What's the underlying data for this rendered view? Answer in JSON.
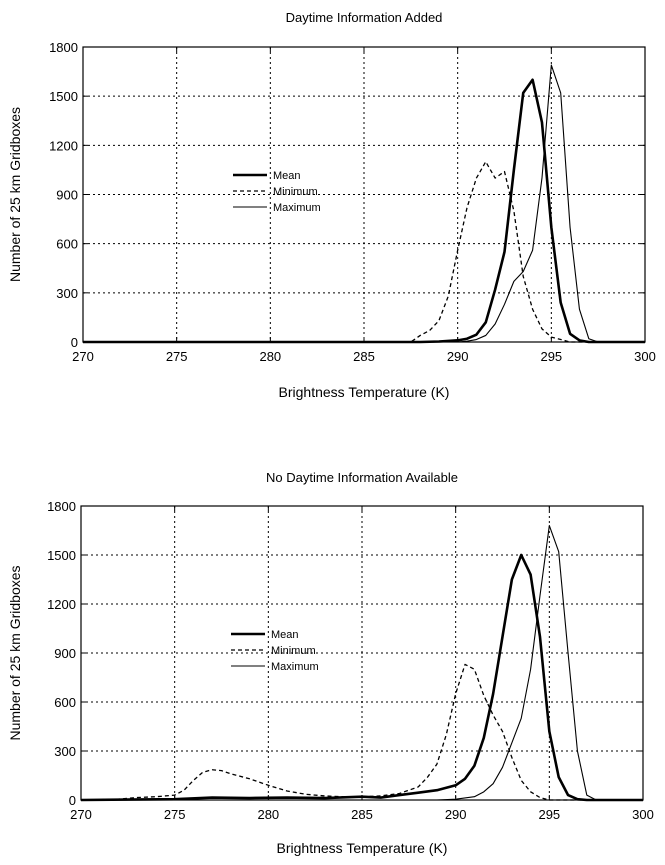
{
  "chart_data": [
    {
      "type": "line",
      "title": "Daytime Information Added",
      "xlabel": "Brightness Temperature (K)",
      "ylabel": "Number of 25 km Gridboxes",
      "xlim": [
        270,
        300
      ],
      "ylim": [
        0,
        1800
      ],
      "xticks": [
        270,
        275,
        280,
        285,
        290,
        295,
        300
      ],
      "yticks": [
        0,
        300,
        600,
        900,
        1200,
        1500,
        1800
      ],
      "grid": true,
      "legend_position": "center-left",
      "series": [
        {
          "name": "Mean",
          "style": "solid-thick",
          "points": [
            [
              270,
              0
            ],
            [
              288,
              0
            ],
            [
              289,
              3
            ],
            [
              290,
              10
            ],
            [
              290.5,
              20
            ],
            [
              291,
              45
            ],
            [
              291.5,
              120
            ],
            [
              292,
              320
            ],
            [
              292.5,
              550
            ],
            [
              293,
              1050
            ],
            [
              293.5,
              1520
            ],
            [
              294,
              1600
            ],
            [
              294.5,
              1340
            ],
            [
              295,
              700
            ],
            [
              295.5,
              240
            ],
            [
              296,
              50
            ],
            [
              296.5,
              10
            ],
            [
              297,
              0
            ],
            [
              300,
              0
            ]
          ]
        },
        {
          "name": "Minimum",
          "style": "dashed",
          "points": [
            [
              270,
              0
            ],
            [
              287.5,
              0
            ],
            [
              288,
              40
            ],
            [
              288.5,
              70
            ],
            [
              289,
              130
            ],
            [
              289.5,
              280
            ],
            [
              290,
              560
            ],
            [
              290.5,
              820
            ],
            [
              291,
              1000
            ],
            [
              291.5,
              1100
            ],
            [
              292,
              1000
            ],
            [
              292.5,
              1040
            ],
            [
              293,
              800
            ],
            [
              293.5,
              400
            ],
            [
              294,
              200
            ],
            [
              294.5,
              80
            ],
            [
              295,
              30
            ],
            [
              296,
              0
            ],
            [
              300,
              0
            ]
          ]
        },
        {
          "name": "Maximum",
          "style": "solid-thin",
          "points": [
            [
              270,
              0
            ],
            [
              290,
              0
            ],
            [
              290.5,
              5
            ],
            [
              291,
              15
            ],
            [
              291.5,
              40
            ],
            [
              292,
              110
            ],
            [
              292.5,
              230
            ],
            [
              293,
              370
            ],
            [
              293.5,
              430
            ],
            [
              294,
              560
            ],
            [
              294.5,
              1000
            ],
            [
              295,
              1690
            ],
            [
              295.5,
              1520
            ],
            [
              296,
              700
            ],
            [
              296.5,
              200
            ],
            [
              297,
              20
            ],
            [
              297.5,
              0
            ],
            [
              300,
              0
            ]
          ]
        }
      ]
    },
    {
      "type": "line",
      "title": "No Daytime Information Available",
      "xlabel": "Brightness Temperature (K)",
      "ylabel": "Number of 25 km Gridboxes",
      "xlim": [
        270,
        300
      ],
      "ylim": [
        0,
        1800
      ],
      "xticks": [
        270,
        275,
        280,
        285,
        290,
        295,
        300
      ],
      "yticks": [
        0,
        300,
        600,
        900,
        1200,
        1500,
        1800
      ],
      "grid": true,
      "legend_position": "center-left",
      "series": [
        {
          "name": "Mean",
          "style": "solid-thick",
          "points": [
            [
              270,
              0
            ],
            [
              275,
              5
            ],
            [
              277,
              15
            ],
            [
              279,
              12
            ],
            [
              281,
              15
            ],
            [
              283,
              12
            ],
            [
              285,
              20
            ],
            [
              286,
              15
            ],
            [
              287,
              30
            ],
            [
              288,
              45
            ],
            [
              289,
              60
            ],
            [
              290,
              90
            ],
            [
              290.5,
              130
            ],
            [
              291,
              210
            ],
            [
              291.5,
              380
            ],
            [
              292,
              650
            ],
            [
              292.5,
              1000
            ],
            [
              293,
              1350
            ],
            [
              293.5,
              1500
            ],
            [
              294,
              1380
            ],
            [
              294.5,
              1000
            ],
            [
              295,
              420
            ],
            [
              295.5,
              140
            ],
            [
              296,
              30
            ],
            [
              296.5,
              5
            ],
            [
              297,
              0
            ],
            [
              300,
              0
            ]
          ]
        },
        {
          "name": "Minimum",
          "style": "dashed",
          "points": [
            [
              270,
              0
            ],
            [
              272,
              5
            ],
            [
              273,
              15
            ],
            [
              274,
              20
            ],
            [
              275,
              30
            ],
            [
              275.5,
              60
            ],
            [
              276,
              120
            ],
            [
              276.5,
              170
            ],
            [
              277,
              185
            ],
            [
              277.5,
              180
            ],
            [
              278,
              160
            ],
            [
              279,
              130
            ],
            [
              280,
              90
            ],
            [
              281,
              55
            ],
            [
              282,
              35
            ],
            [
              283,
              25
            ],
            [
              284,
              20
            ],
            [
              285,
              20
            ],
            [
              286,
              25
            ],
            [
              287,
              40
            ],
            [
              288,
              80
            ],
            [
              288.5,
              140
            ],
            [
              289,
              220
            ],
            [
              289.5,
              400
            ],
            [
              290,
              650
            ],
            [
              290.5,
              830
            ],
            [
              291,
              800
            ],
            [
              291.5,
              640
            ],
            [
              292,
              520
            ],
            [
              292.5,
              420
            ],
            [
              293,
              260
            ],
            [
              293.5,
              120
            ],
            [
              294,
              50
            ],
            [
              294.5,
              15
            ],
            [
              295,
              0
            ],
            [
              300,
              0
            ]
          ]
        },
        {
          "name": "Maximum",
          "style": "solid-thin",
          "points": [
            [
              270,
              0
            ],
            [
              289,
              0
            ],
            [
              290,
              5
            ],
            [
              291,
              20
            ],
            [
              291.5,
              50
            ],
            [
              292,
              100
            ],
            [
              292.5,
              200
            ],
            [
              293,
              350
            ],
            [
              293.5,
              500
            ],
            [
              294,
              800
            ],
            [
              294.5,
              1250
            ],
            [
              295,
              1680
            ],
            [
              295.5,
              1520
            ],
            [
              296,
              900
            ],
            [
              296.5,
              300
            ],
            [
              297,
              30
            ],
            [
              297.5,
              0
            ],
            [
              300,
              0
            ]
          ]
        }
      ]
    }
  ]
}
